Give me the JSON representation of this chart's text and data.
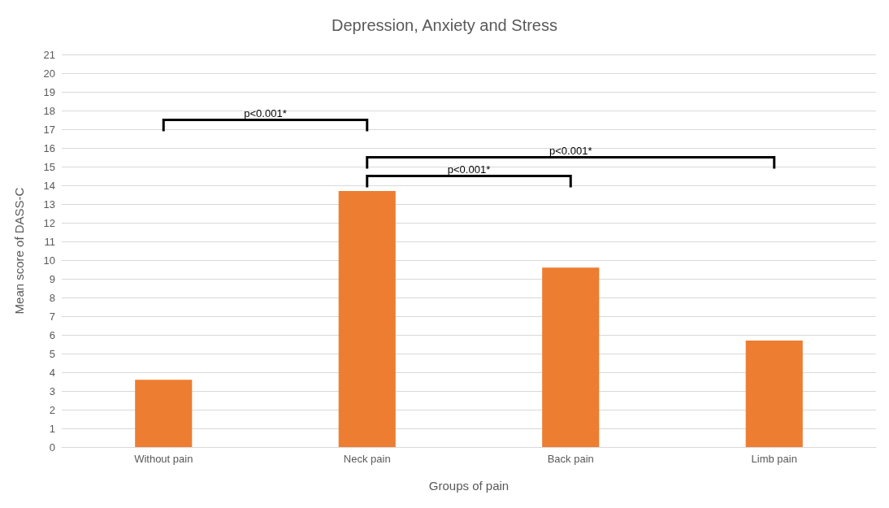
{
  "chart_data": {
    "type": "bar",
    "title": "Depression, Anxiety and Stress",
    "xlabel": "Groups of pain",
    "ylabel": "Mean score of DASS-C",
    "categories": [
      "Without pain",
      "Neck pain",
      "Back pain",
      "Limb pain"
    ],
    "values": [
      3.6,
      13.7,
      9.6,
      5.7
    ],
    "color": "#ed7d31",
    "ylim": [
      0,
      21
    ],
    "yticks": [
      0,
      1,
      2,
      3,
      4,
      5,
      6,
      7,
      8,
      9,
      10,
      11,
      12,
      13,
      14,
      15,
      16,
      17,
      18,
      19,
      20,
      21
    ],
    "grid": "y",
    "annotations": [
      "p<0.001*",
      "p<0.001*",
      "p<0.001*"
    ]
  }
}
